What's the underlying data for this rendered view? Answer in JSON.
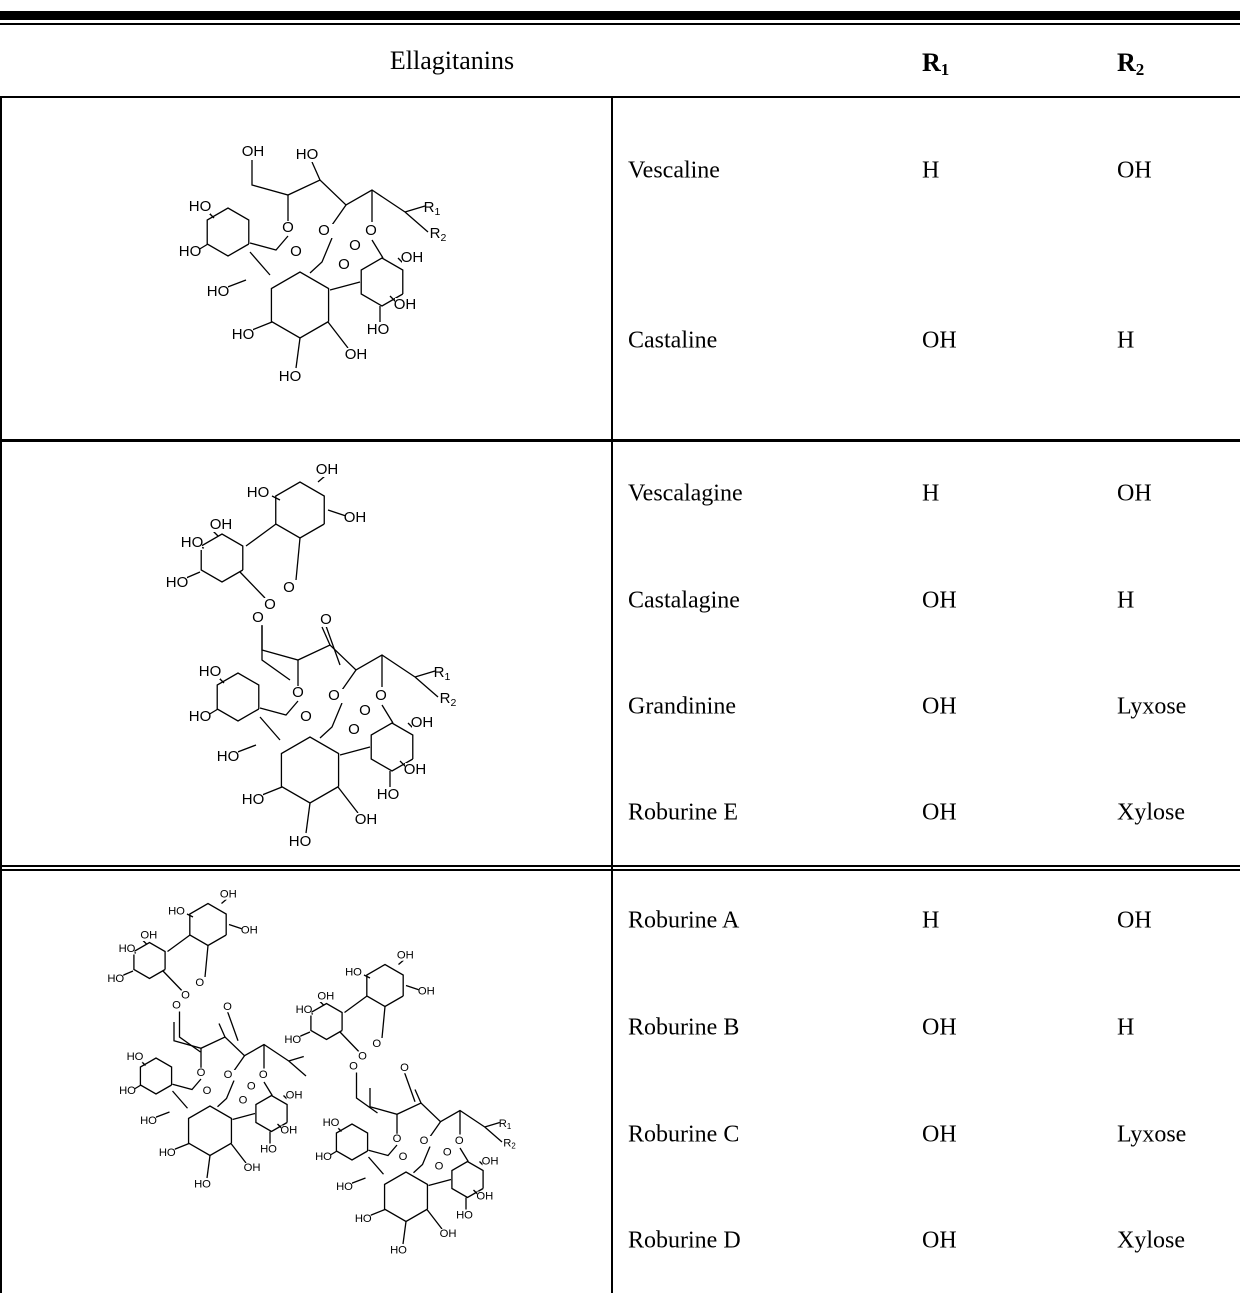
{
  "header": {
    "title": "Ellagitanins",
    "r1": {
      "text": "R",
      "sub": "1"
    },
    "r2": {
      "text": "R",
      "sub": "2"
    }
  },
  "groups": [
    {
      "compounds": [
        {
          "name": "Vescaline",
          "r1": "H",
          "r2": "OH"
        },
        {
          "name": "Castaline",
          "r1": "OH",
          "r2": "H"
        }
      ],
      "structure_labels": [
        "OH",
        "HO",
        "HO",
        {
          "t": "R",
          "s": "1"
        },
        {
          "t": "R",
          "s": "2"
        },
        "HO",
        "O",
        "O",
        "O",
        "O",
        "O",
        "O",
        "OH",
        "HO",
        "OH",
        "HO",
        "HO",
        "OH",
        "HO"
      ]
    },
    {
      "compounds": [
        {
          "name": "Vescalagine",
          "r1": "H",
          "r2": "OH"
        },
        {
          "name": "Castalagine",
          "r1": "OH",
          "r2": "H"
        },
        {
          "name": "Grandinine",
          "r1": "OH",
          "r2": "Lyxose"
        },
        {
          "name": "Roburine E",
          "r1": "OH",
          "r2": "Xylose"
        }
      ],
      "structure_labels": [
        "OH",
        "HO",
        "OH",
        "OH",
        "HO",
        "HO",
        "O",
        "O",
        "O",
        "O",
        "HO",
        {
          "t": "R",
          "s": "1"
        },
        {
          "t": "R",
          "s": "2"
        },
        "HO",
        "O",
        "O",
        "O",
        "O",
        "O",
        "O",
        "OH",
        "HO",
        "OH",
        "HO",
        "HO",
        "OH",
        "HO"
      ]
    },
    {
      "compounds": [
        {
          "name": "Roburine A",
          "r1": "H",
          "r2": "OH"
        },
        {
          "name": "Roburine B",
          "r1": "OH",
          "r2": "H"
        },
        {
          "name": "Roburine C",
          "r1": "OH",
          "r2": "Lyxose"
        },
        {
          "name": "Roburine D",
          "r1": "OH",
          "r2": "Xylose"
        }
      ],
      "structure_labels": [
        "OH",
        "HO",
        "OH",
        "OH",
        "HO",
        "HO",
        "O",
        "O",
        "O",
        "O",
        "HO",
        "HO",
        "O",
        "O",
        "O",
        "O",
        "O",
        "O",
        "OH",
        "HO",
        "OH",
        "HO",
        "HO",
        "OH",
        "HO",
        "OH",
        "HO",
        "OH",
        "OH",
        "HO",
        "HO",
        "O",
        "O",
        "O",
        "O",
        "HO",
        {
          "t": "R",
          "s": "1"
        },
        {
          "t": "R",
          "s": "2"
        },
        "HO",
        "O",
        "O",
        "O",
        "O",
        "O",
        "O",
        "OH",
        "HO",
        "OH",
        "HO",
        "HO",
        "OH",
        "HO"
      ]
    }
  ]
}
